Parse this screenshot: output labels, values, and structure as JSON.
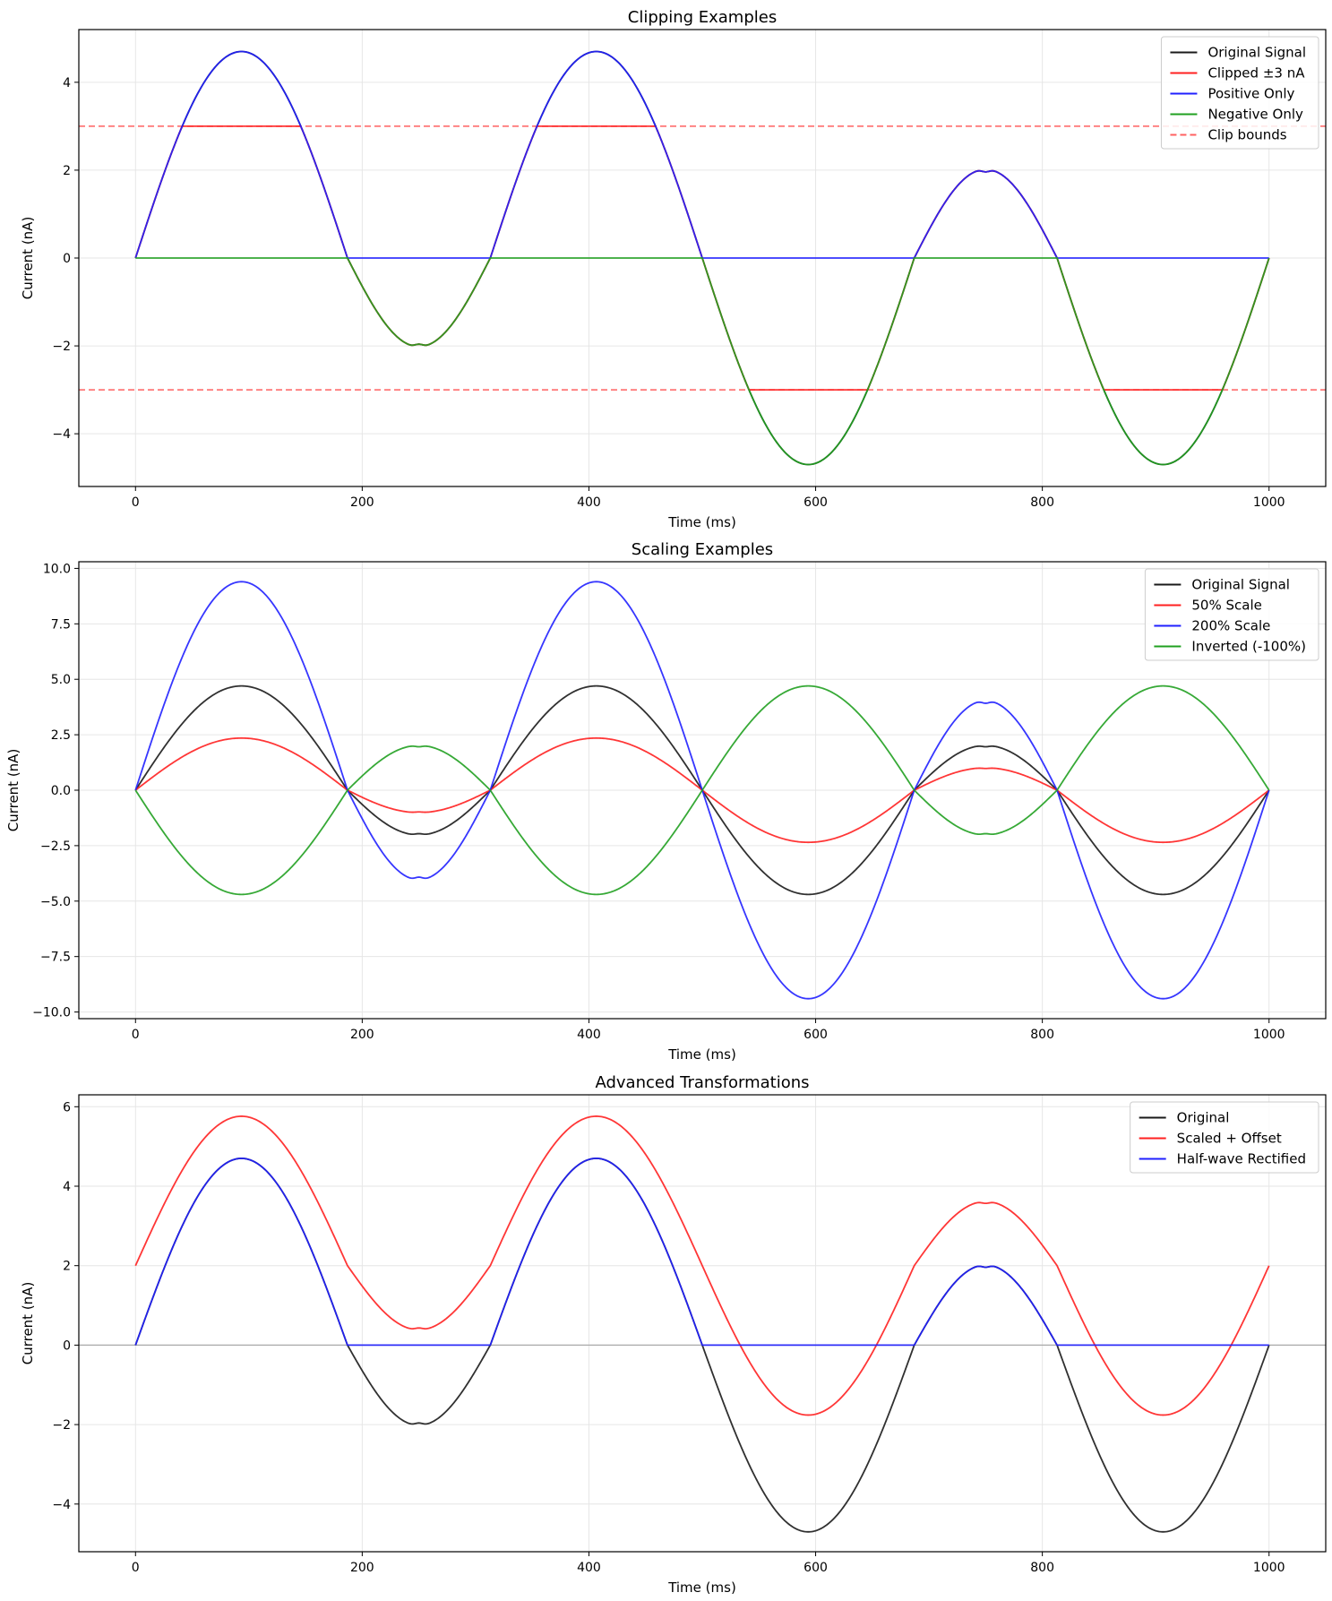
{
  "charts": [
    {
      "type": "line",
      "title": "Clipping Examples",
      "xlabel": "Time (ms)",
      "ylabel": "Current (nA)",
      "xlim": [
        -50,
        1050
      ],
      "ylim": [
        -5.2,
        5.2
      ],
      "xticks": [
        0,
        200,
        400,
        600,
        800,
        1000
      ],
      "yticks": [
        -4,
        -2,
        0,
        2,
        4
      ],
      "grid": true,
      "legend_position": "top-right",
      "series": [
        {
          "name": "Original Signal",
          "color": "#1a1a1a",
          "transform": "original"
        },
        {
          "name": "Clipped ±3 nA",
          "color": "#ff2020",
          "transform": "clip",
          "params": {
            "min": -3,
            "max": 3
          }
        },
        {
          "name": "Positive Only",
          "color": "#2020ff",
          "transform": "positive"
        },
        {
          "name": "Negative Only",
          "color": "#20a020",
          "transform": "negative"
        }
      ],
      "hlines": [
        {
          "name": "Clip bounds",
          "y": [
            3,
            -3
          ],
          "color": "#ff6060",
          "dashed": true
        }
      ]
    },
    {
      "type": "line",
      "title": "Scaling Examples",
      "xlabel": "Time (ms)",
      "ylabel": "Current (nA)",
      "xlim": [
        -50,
        1050
      ],
      "ylim": [
        -10.3,
        10.3
      ],
      "xticks": [
        0,
        200,
        400,
        600,
        800,
        1000
      ],
      "yticks": [
        -10.0,
        -7.5,
        -5.0,
        -2.5,
        0.0,
        2.5,
        5.0,
        7.5,
        10.0
      ],
      "grid": true,
      "legend_position": "top-right",
      "series": [
        {
          "name": "Original Signal",
          "color": "#1a1a1a",
          "transform": "scale",
          "params": {
            "factor": 1
          }
        },
        {
          "name": "50% Scale",
          "color": "#ff2020",
          "transform": "scale",
          "params": {
            "factor": 0.5
          }
        },
        {
          "name": "200% Scale",
          "color": "#2020ff",
          "transform": "scale",
          "params": {
            "factor": 2
          }
        },
        {
          "name": "Inverted (-100%)",
          "color": "#20a020",
          "transform": "scale",
          "params": {
            "factor": -1
          }
        }
      ],
      "hlines": []
    },
    {
      "type": "line",
      "title": "Advanced Transformations",
      "xlabel": "Time (ms)",
      "ylabel": "Current (nA)",
      "xlim": [
        -50,
        1050
      ],
      "ylim": [
        -5.2,
        6.3
      ],
      "xticks": [
        0,
        200,
        400,
        600,
        800,
        1000
      ],
      "yticks": [
        -4,
        -2,
        0,
        2,
        4,
        6
      ],
      "grid": true,
      "legend_position": "top-right",
      "series": [
        {
          "name": "Original",
          "color": "#1a1a1a",
          "transform": "original"
        },
        {
          "name": "Scaled + Offset",
          "color": "#ff2020",
          "transform": "scale_offset",
          "params": {
            "factor": 0.8,
            "offset": 2
          }
        },
        {
          "name": "Half-wave Rectified",
          "color": "#2020ff",
          "transform": "positive"
        }
      ],
      "zero_line": true,
      "hlines": []
    }
  ],
  "chart_data": [
    {
      "type": "line",
      "title": "Clipping Examples",
      "xlabel": "Time (ms)",
      "ylabel": "Current (nA)",
      "xlim": [
        -50,
        1050
      ],
      "ylim": [
        -5.2,
        5.2
      ],
      "signal": {
        "description_points": [
          {
            "x": 0,
            "y": 0
          },
          {
            "x": 90,
            "y": 4.7
          },
          {
            "x": 187,
            "y": 0
          },
          {
            "x": 250,
            "y": -2.0
          },
          {
            "x": 313,
            "y": 0
          },
          {
            "x": 410,
            "y": 4.7
          },
          {
            "x": 500,
            "y": 0
          },
          {
            "x": 590,
            "y": -4.7
          },
          {
            "x": 687,
            "y": 0
          },
          {
            "x": 750,
            "y": 2.0
          },
          {
            "x": 813,
            "y": 0
          },
          {
            "x": 910,
            "y": -4.7
          },
          {
            "x": 1000,
            "y": 0
          }
        ]
      },
      "series": [
        "Original Signal",
        "Clipped ±3 nA",
        "Positive Only",
        "Negative Only",
        "Clip bounds"
      ]
    },
    {
      "type": "line",
      "title": "Scaling Examples",
      "xlabel": "Time (ms)",
      "ylabel": "Current (nA)",
      "xlim": [
        -50,
        1050
      ],
      "ylim": [
        -10.3,
        10.3
      ],
      "series": [
        "Original Signal",
        "50% Scale",
        "200% Scale",
        "Inverted (-100%)"
      ]
    },
    {
      "type": "line",
      "title": "Advanced Transformations",
      "xlabel": "Time (ms)",
      "ylabel": "Current (nA)",
      "xlim": [
        -50,
        1050
      ],
      "ylim": [
        -5.2,
        6.3
      ],
      "series": [
        "Original",
        "Scaled + Offset",
        "Half-wave Rectified"
      ]
    }
  ]
}
